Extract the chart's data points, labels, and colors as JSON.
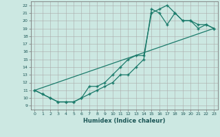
{
  "xlabel": "Humidex (Indice chaleur)",
  "bg_color": "#cce8e2",
  "line_color": "#1a7a6a",
  "xlim": [
    -0.5,
    23.5
  ],
  "ylim": [
    8.5,
    22.5
  ],
  "xticks": [
    0,
    1,
    2,
    3,
    4,
    5,
    6,
    7,
    8,
    9,
    10,
    11,
    12,
    13,
    14,
    15,
    16,
    17,
    18,
    19,
    20,
    21,
    22,
    23
  ],
  "yticks": [
    9,
    10,
    11,
    12,
    13,
    14,
    15,
    16,
    17,
    18,
    19,
    20,
    21,
    22
  ],
  "line1_x": [
    0,
    1,
    2,
    3,
    4,
    5,
    6,
    7,
    8,
    9,
    10,
    11,
    12,
    13,
    14,
    15,
    16,
    17,
    18,
    19,
    20,
    21,
    22,
    23
  ],
  "line1_y": [
    11,
    10.5,
    10,
    9.5,
    9.5,
    9.5,
    10,
    11.5,
    11.5,
    12,
    13,
    14,
    15,
    15.5,
    15.5,
    21,
    21.5,
    22,
    21,
    20,
    20,
    19,
    19.5,
    19
  ],
  "line2_x": [
    0,
    1,
    2,
    3,
    4,
    5,
    6,
    7,
    8,
    9,
    10,
    11,
    12,
    13,
    14,
    15,
    16,
    17,
    18,
    19,
    20,
    21,
    22,
    23
  ],
  "line2_y": [
    11,
    10.5,
    10,
    9.5,
    9.5,
    9.5,
    10,
    10.5,
    11,
    11.5,
    12,
    13,
    13,
    14,
    15,
    21.5,
    21,
    19.5,
    21,
    20,
    20,
    19.5,
    19.5,
    19
  ],
  "line3_x": [
    0,
    23
  ],
  "line3_y": [
    11,
    19
  ]
}
